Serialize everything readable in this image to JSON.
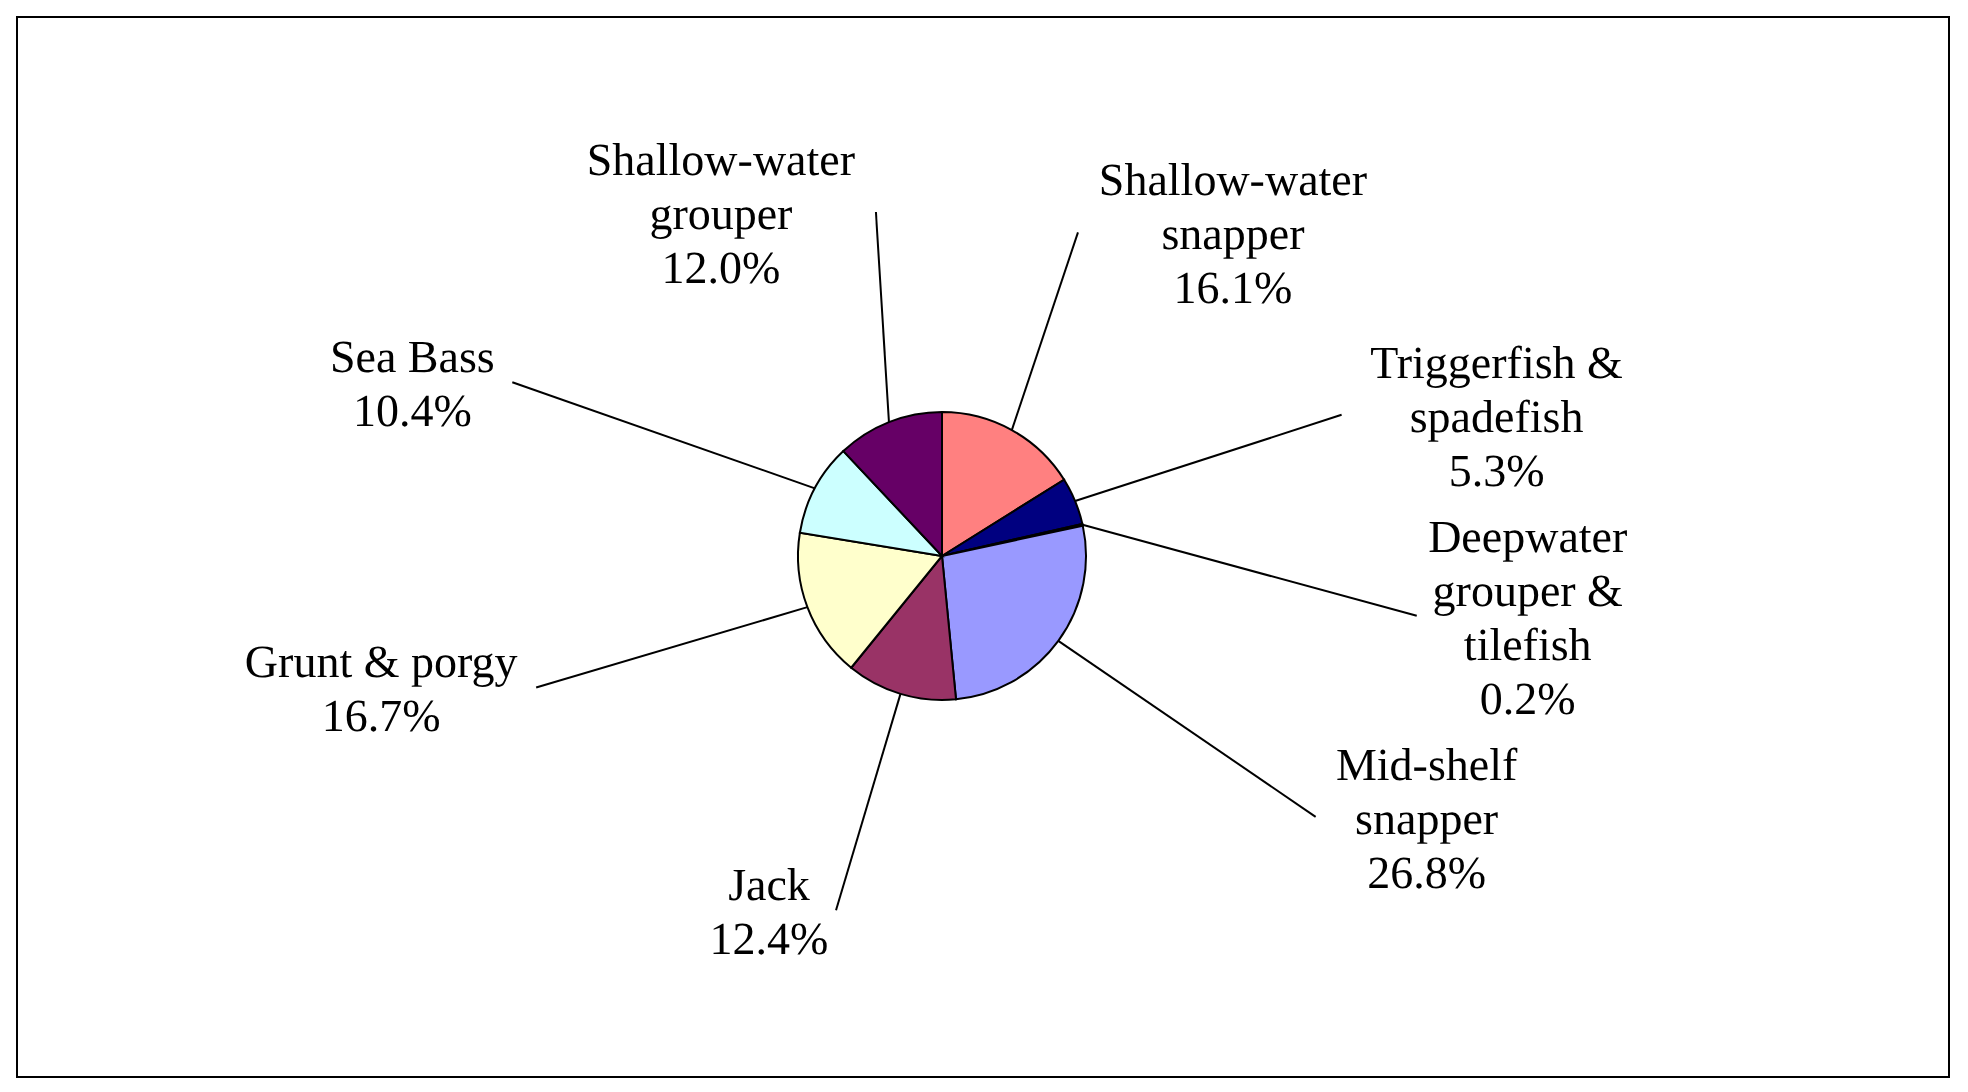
{
  "chart_data": {
    "type": "pie",
    "categories": [
      "Shallow-water snapper",
      "Triggerfish & spadefish",
      "Deepwater grouper & tilefish",
      "Mid-shelf snapper",
      "Jack",
      "Grunt & porgy",
      "Sea Bass",
      "Shallow-water grouper"
    ],
    "values": [
      16.1,
      5.3,
      0.2,
      26.8,
      12.4,
      16.7,
      10.4,
      12.0
    ],
    "value_labels": [
      "16.1%",
      "5.3%",
      "0.2%",
      "26.8%",
      "12.4%",
      "16.7%",
      "10.4%",
      "12.0%"
    ],
    "colors": [
      "#ff8080",
      "#000080",
      "#ffffff",
      "#9999ff",
      "#993366",
      "#ffffcc",
      "#ccffff",
      "#660066"
    ]
  }
}
